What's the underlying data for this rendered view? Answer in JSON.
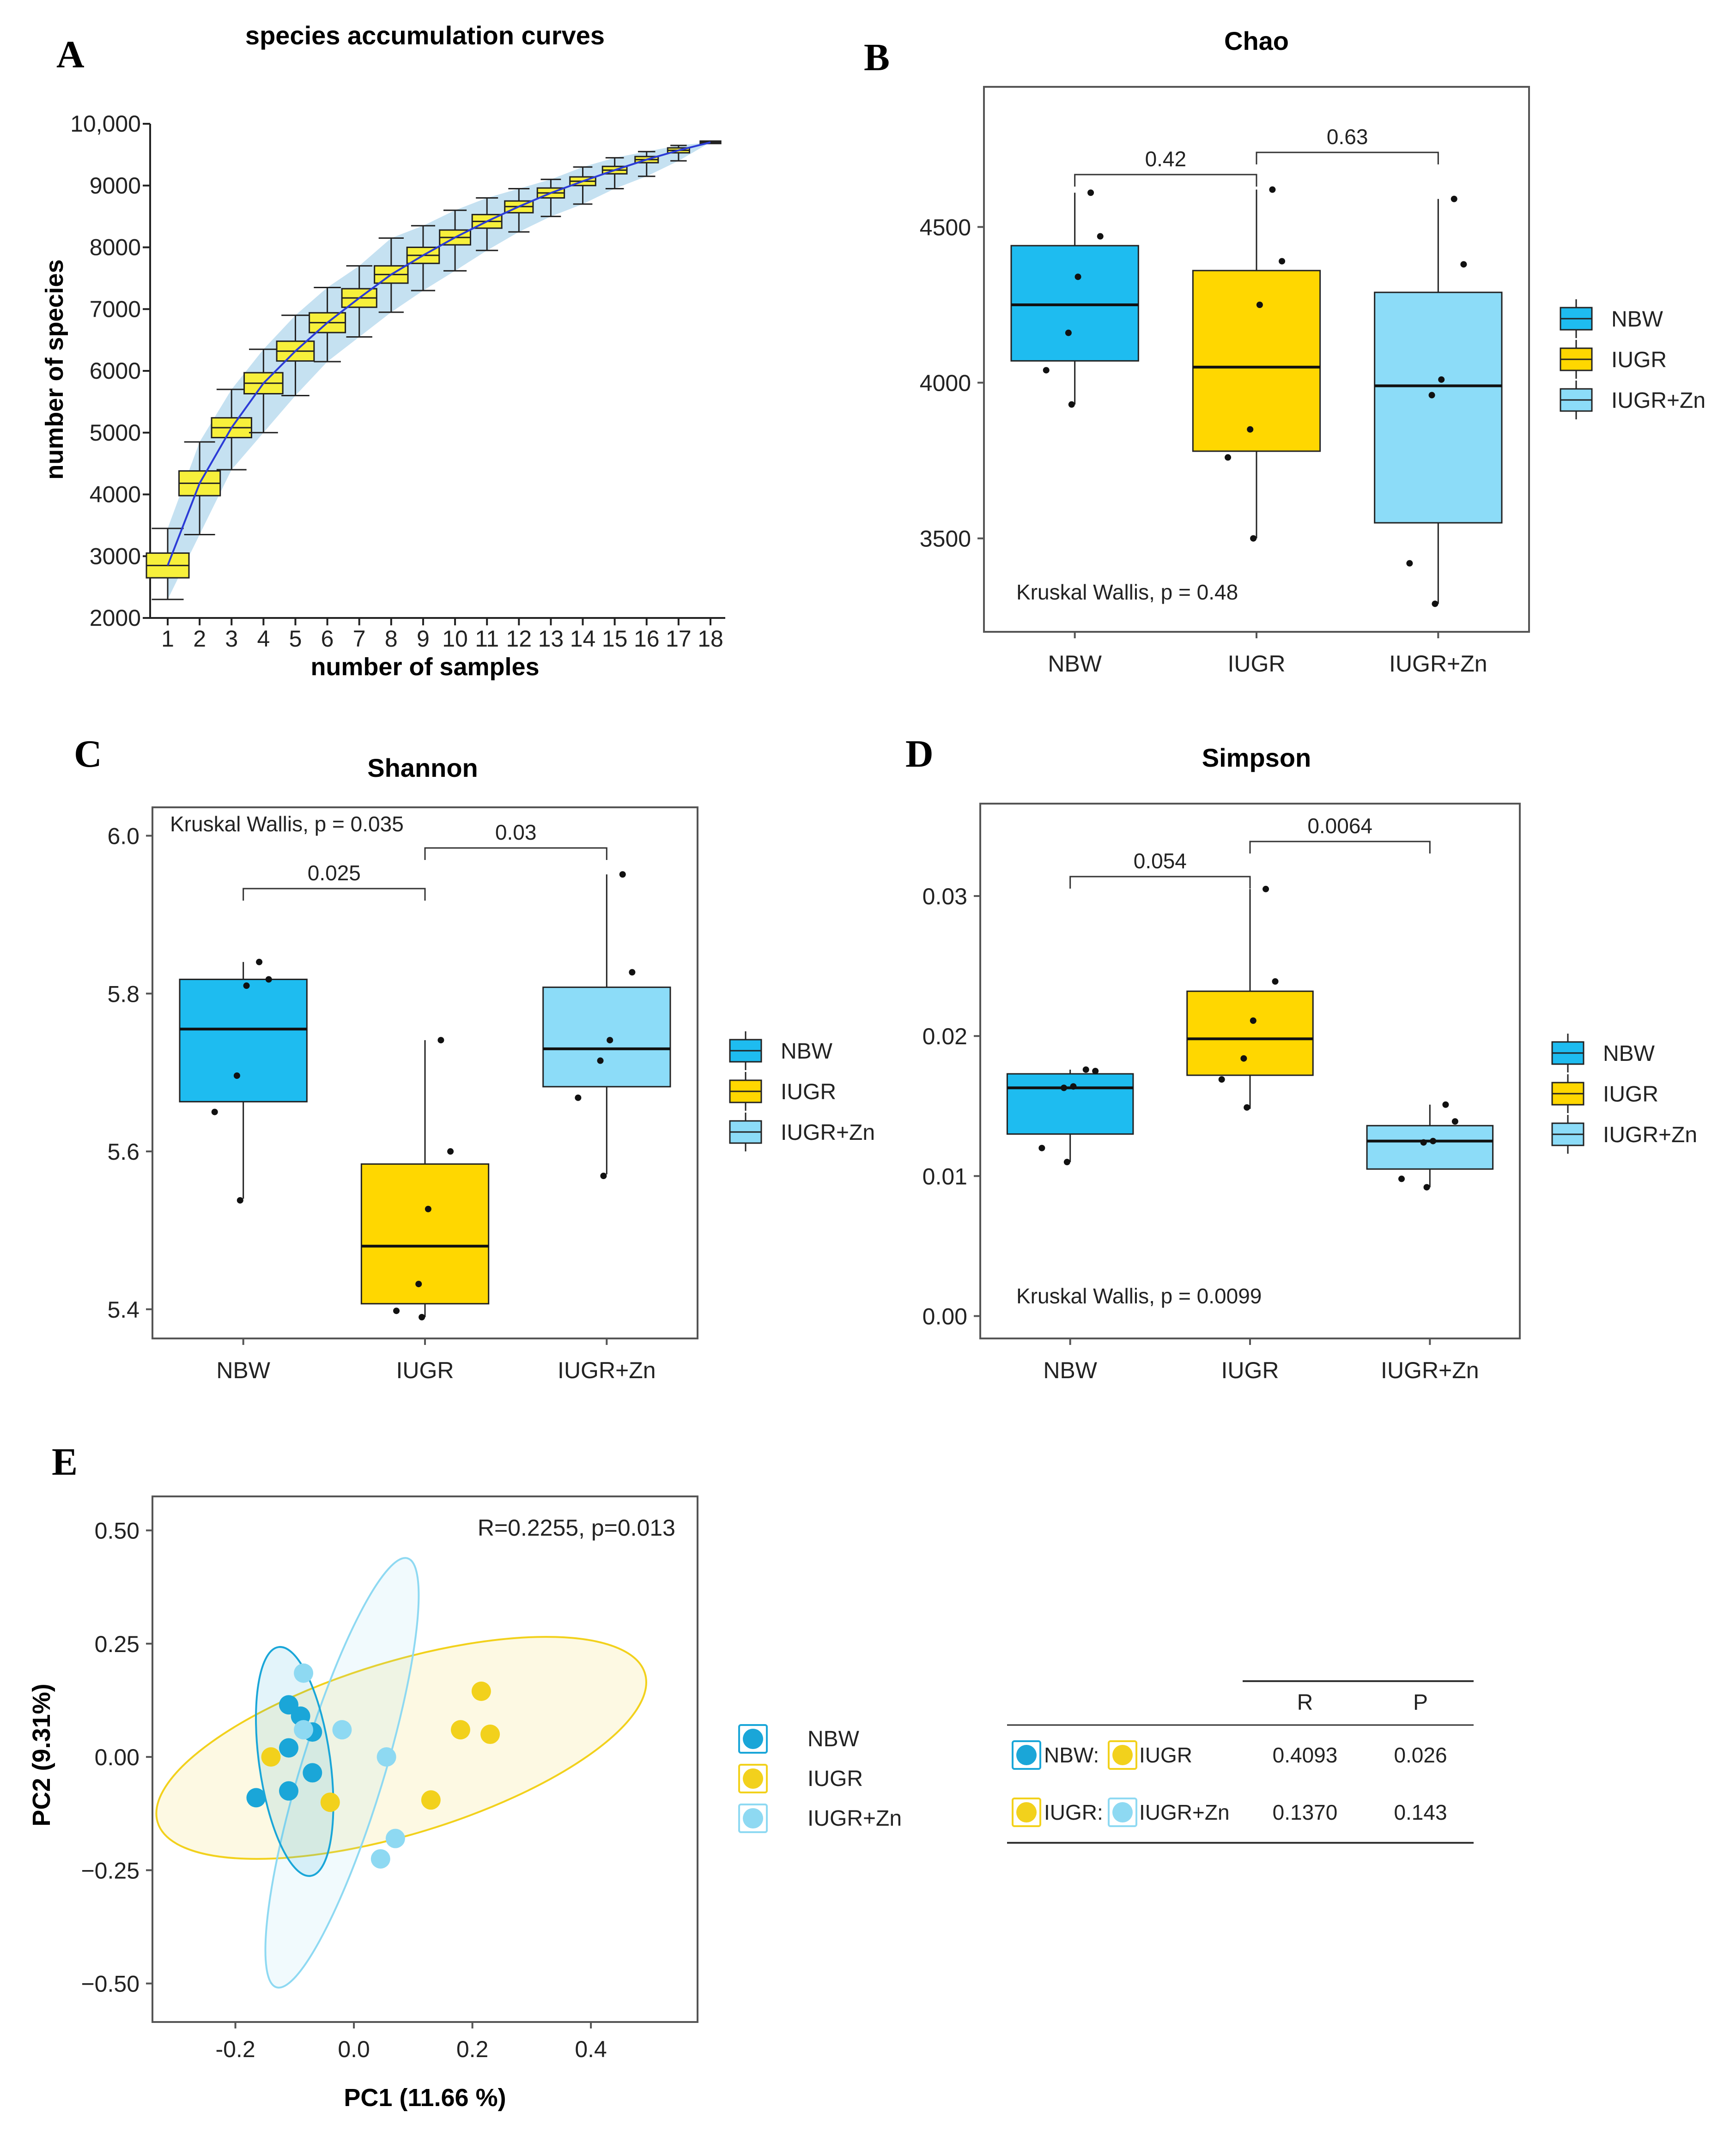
{
  "panel_labels": [
    "A",
    "B",
    "C",
    "D",
    "E"
  ],
  "colors": {
    "NBW": "#1ebcf0",
    "IUGR": "#ffd700",
    "IUGR+Zn": "#8cdcf8",
    "rare_box": "#f7f03b",
    "rare_line": "#2b3bd6",
    "rare_band": "#b7d9ee",
    "pcoa_NBW": "#1aa6d8",
    "pcoa_IUGR": "#f2d11c",
    "pcoa_IUGRZn": "#8ed9f2"
  },
  "chart_data": [
    {
      "panel": "A",
      "type": "line",
      "title": "species accumulation curves",
      "xlabel": "number of samples",
      "ylabel": "number of species",
      "x": [
        1,
        2,
        3,
        4,
        5,
        6,
        7,
        8,
        9,
        10,
        11,
        12,
        13,
        14,
        15,
        16,
        17,
        18
      ],
      "x_tick_labels": [
        "1",
        "2",
        "3",
        "4",
        "5",
        "6",
        "7",
        "8",
        "9",
        "10",
        "11",
        "12",
        "13",
        "14",
        "15",
        "16",
        "17",
        "18"
      ],
      "y_tick_labels": [
        "2000",
        "3000",
        "4000",
        "5000",
        "6000",
        "7000",
        "8000",
        "9000",
        "10,000"
      ],
      "y_ticks": [
        2000,
        3000,
        4000,
        5000,
        6000,
        7000,
        8000,
        9000,
        10000
      ],
      "ylim": [
        2000,
        10000
      ],
      "median": [
        2850,
        4180,
        5080,
        5800,
        6320,
        6780,
        7180,
        7560,
        7870,
        8160,
        8420,
        8660,
        8880,
        9070,
        9250,
        9420,
        9570,
        9700
      ],
      "q1": [
        2650,
        3980,
        4920,
        5630,
        6160,
        6620,
        7030,
        7420,
        7740,
        8040,
        8310,
        8560,
        8800,
        9000,
        9190,
        9370,
        9530,
        9680
      ],
      "q3": [
        3050,
        4380,
        5240,
        5970,
        6480,
        6940,
        7330,
        7700,
        8000,
        8280,
        8530,
        8750,
        8960,
        9140,
        9310,
        9470,
        9610,
        9720
      ],
      "whisker_low": [
        2300,
        3350,
        4400,
        5000,
        5600,
        6150,
        6550,
        6950,
        7300,
        7620,
        7950,
        8250,
        8500,
        8700,
        8950,
        9150,
        9400,
        9700
      ],
      "whisker_high": [
        3450,
        4850,
        5700,
        6350,
        6900,
        7350,
        7700,
        8150,
        8350,
        8600,
        8800,
        8950,
        9100,
        9300,
        9450,
        9550,
        9650,
        9700
      ]
    },
    {
      "panel": "B",
      "type": "box",
      "title": "Chao",
      "categories": [
        "NBW",
        "IUGR",
        "IUGR+Zn"
      ],
      "ylim": [
        3200,
        4950
      ],
      "y_ticks": [
        3500,
        4000,
        4500
      ],
      "y_tick_labels": [
        "3500",
        "4000",
        "4500"
      ],
      "boxes": [
        {
          "group": "NBW",
          "whisker_low": 3930,
          "q1": 4070,
          "median": 4250,
          "q3": 4440,
          "whisker_high": 4610
        },
        {
          "group": "IUGR",
          "whisker_low": 3500,
          "q1": 3780,
          "median": 4050,
          "q3": 4360,
          "whisker_high": 4620
        },
        {
          "group": "IUGR+Zn",
          "whisker_low": 3290,
          "q1": 3550,
          "median": 3990,
          "q3": 4290,
          "whisker_high": 4590
        }
      ],
      "points": [
        [
          4610,
          4470,
          4340,
          4160,
          4040,
          3930
        ],
        [
          4620,
          4390,
          4250,
          3850,
          3760,
          3500
        ],
        [
          4590,
          4380,
          4010,
          3960,
          3420,
          3290
        ]
      ],
      "comparisons": [
        {
          "pair": [
            0,
            1
          ],
          "label": "0.42"
        },
        {
          "pair": [
            1,
            2
          ],
          "label": "0.63"
        }
      ],
      "test_text": "Kruskal Wallis, p = 0.48",
      "legend": [
        "NBW",
        "IUGR",
        "IUGR+Zn"
      ]
    },
    {
      "panel": "C",
      "type": "box",
      "title": "Shannon",
      "categories": [
        "NBW",
        "IUGR",
        "IUGR+Zn"
      ],
      "ylim": [
        5.363,
        6.036
      ],
      "y_ticks": [
        5.4,
        5.6,
        5.8,
        6.0
      ],
      "y_tick_labels": [
        "5.4",
        "5.6",
        "5.8",
        "6.0"
      ],
      "boxes": [
        {
          "group": "NBW",
          "whisker_low": 5.54,
          "q1": 5.663,
          "median": 5.755,
          "q3": 5.818,
          "whisker_high": 5.84
        },
        {
          "group": "IUGR",
          "whisker_low": 5.39,
          "q1": 5.407,
          "median": 5.48,
          "q3": 5.584,
          "whisker_high": 5.741
        },
        {
          "group": "IUGR+Zn",
          "whisker_low": 5.571,
          "q1": 5.682,
          "median": 5.73,
          "q3": 5.808,
          "whisker_high": 5.951
        }
      ],
      "points": [
        [
          5.84,
          5.818,
          5.81,
          5.696,
          5.65,
          5.538
        ],
        [
          5.741,
          5.6,
          5.527,
          5.432,
          5.398,
          5.39
        ],
        [
          5.951,
          5.827,
          5.741,
          5.715,
          5.668,
          5.569
        ]
      ],
      "comparisons": [
        {
          "pair": [
            0,
            1
          ],
          "label": "0.025"
        },
        {
          "pair": [
            1,
            2
          ],
          "label": "0.03"
        }
      ],
      "test_text": "Kruskal Wallis, p = 0.035",
      "legend": [
        "NBW",
        "IUGR",
        "IUGR+Zn"
      ]
    },
    {
      "panel": "D",
      "type": "box",
      "title": "Simpson",
      "categories": [
        "NBW",
        "IUGR",
        "IUGR+Zn"
      ],
      "ylim": [
        -0.0016,
        0.0366
      ],
      "y_ticks": [
        0.0,
        0.01,
        0.02,
        0.03
      ],
      "y_tick_labels": [
        "0.00",
        "0.01",
        "0.02",
        "0.03"
      ],
      "boxes": [
        {
          "group": "NBW",
          "whisker_low": 0.011,
          "q1": 0.013,
          "median": 0.0163,
          "q3": 0.0173,
          "whisker_high": 0.0176
        },
        {
          "group": "IUGR",
          "whisker_low": 0.0148,
          "q1": 0.0172,
          "median": 0.0198,
          "q3": 0.0232,
          "whisker_high": 0.0305
        },
        {
          "group": "IUGR+Zn",
          "whisker_low": 0.0092,
          "q1": 0.0105,
          "median": 0.0125,
          "q3": 0.0136,
          "whisker_high": 0.0151
        }
      ],
      "points": [
        [
          0.0176,
          0.0175,
          0.0164,
          0.0163,
          0.012,
          0.011
        ],
        [
          0.0305,
          0.0239,
          0.0211,
          0.0184,
          0.0169,
          0.0149
        ],
        [
          0.0151,
          0.0139,
          0.0125,
          0.0124,
          0.0098,
          0.0092
        ]
      ],
      "comparisons": [
        {
          "pair": [
            0,
            1
          ],
          "label": "0.054"
        },
        {
          "pair": [
            1,
            2
          ],
          "label": "0.0064"
        }
      ],
      "test_text": "Kruskal Wallis, p = 0.0099",
      "legend": [
        "NBW",
        "IUGR",
        "IUGR+Zn"
      ]
    },
    {
      "panel": "E",
      "type": "scatter",
      "xlabel": "PC1 (11.66 %)",
      "ylabel": "PC2 (9.31%)",
      "xlim": [
        -0.34,
        0.58
      ],
      "ylim": [
        -0.585,
        0.575
      ],
      "x_ticks": [
        -0.2,
        0.0,
        0.2,
        0.4
      ],
      "x_tick_labels": [
        "-0.2",
        "0.0",
        "0.2",
        "0.4"
      ],
      "y_ticks": [
        -0.5,
        -0.25,
        0.0,
        0.25,
        0.5
      ],
      "y_tick_labels": [
        "−0.50",
        "−0.25",
        "0.00",
        "0.25",
        "0.50"
      ],
      "annotation": "R=0.2255, p=0.013",
      "series": [
        {
          "name": "NBW",
          "x": [
            -0.11,
            -0.09,
            -0.07,
            -0.07,
            -0.165,
            -0.11,
            -0.11
          ],
          "y": [
            0.115,
            0.09,
            0.055,
            -0.035,
            -0.09,
            -0.075,
            0.02
          ]
        },
        {
          "name": "IUGR",
          "x": [
            -0.14,
            -0.04,
            0.13,
            0.18,
            0.215,
            0.23
          ],
          "y": [
            0.0,
            -0.1,
            -0.095,
            0.06,
            0.145,
            0.05
          ]
        },
        {
          "name": "IUGR+Zn",
          "x": [
            -0.085,
            -0.085,
            -0.02,
            0.055,
            0.07,
            0.045
          ],
          "y": [
            0.185,
            0.06,
            0.06,
            0.0,
            -0.18,
            -0.225
          ]
        }
      ],
      "ellipses": [
        {
          "name": "NBW",
          "cx": -0.1,
          "cy": -0.01,
          "rx": 0.06,
          "ry": 0.255,
          "angle": -8
        },
        {
          "name": "IUGR",
          "cx": 0.08,
          "cy": 0.02,
          "rx": 0.43,
          "ry": 0.19,
          "angle": -17
        },
        {
          "name": "IUGR+Zn",
          "cx": -0.02,
          "cy": -0.035,
          "rx": 0.07,
          "ry": 0.495,
          "angle": 17
        }
      ],
      "legend": [
        "NBW",
        "IUGR",
        "IUGR+Zn"
      ]
    },
    {
      "panel": "E-table",
      "type": "table",
      "columns": [
        "",
        "R",
        "P"
      ],
      "rows": [
        {
          "pair": [
            "NBW:",
            "IUGR"
          ],
          "R": "0.4093",
          "P": "0.026"
        },
        {
          "pair": [
            "IUGR:",
            "IUGR+Zn"
          ],
          "R": "0.1370",
          "P": "0.143"
        }
      ]
    }
  ]
}
